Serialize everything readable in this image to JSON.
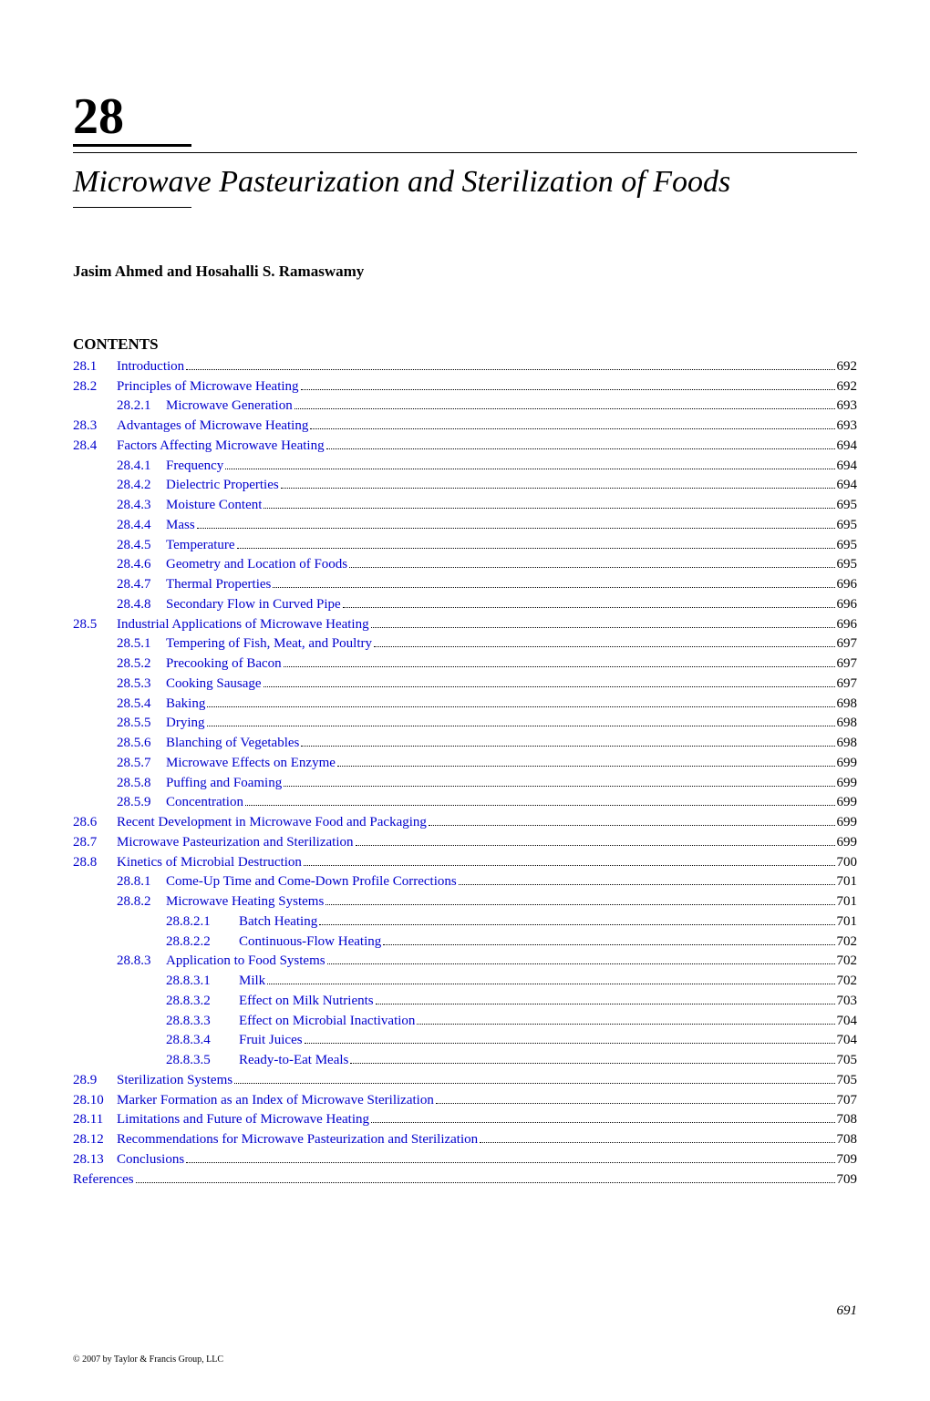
{
  "chapter_number": "28",
  "chapter_title": "Microwave Pasteurization and Sterilization of Foods",
  "authors": "Jasim Ahmed and Hosahalli S. Ramaswamy",
  "contents_label": "CONTENTS",
  "page_number": "691",
  "copyright": "© 2007 by Taylor & Francis Group, LLC",
  "colors": {
    "link": "#0000cc",
    "text": "#000000",
    "background": "#ffffff"
  },
  "typography": {
    "chapter_number_size": 56,
    "title_size": 34,
    "authors_size": 17,
    "heading_size": 17,
    "toc_size": 15
  },
  "toc": [
    {
      "level": 1,
      "num": "28.1",
      "text": "Introduction",
      "page": "692"
    },
    {
      "level": 1,
      "num": "28.2",
      "text": "Principles of Microwave Heating",
      "page": "692"
    },
    {
      "level": 2,
      "num": "28.2.1",
      "text": "Microwave Generation",
      "page": "693"
    },
    {
      "level": 1,
      "num": "28.3",
      "text": "Advantages of Microwave Heating",
      "page": "693"
    },
    {
      "level": 1,
      "num": "28.4",
      "text": "Factors Affecting Microwave Heating",
      "page": "694"
    },
    {
      "level": 2,
      "num": "28.4.1",
      "text": "Frequency",
      "page": "694"
    },
    {
      "level": 2,
      "num": "28.4.2",
      "text": "Dielectric Properties",
      "page": "694"
    },
    {
      "level": 2,
      "num": "28.4.3",
      "text": "Moisture Content",
      "page": "695"
    },
    {
      "level": 2,
      "num": "28.4.4",
      "text": "Mass",
      "page": "695"
    },
    {
      "level": 2,
      "num": "28.4.5",
      "text": "Temperature",
      "page": "695"
    },
    {
      "level": 2,
      "num": "28.4.6",
      "text": "Geometry and Location of Foods",
      "page": "695"
    },
    {
      "level": 2,
      "num": "28.4.7",
      "text": "Thermal Properties",
      "page": "696"
    },
    {
      "level": 2,
      "num": "28.4.8",
      "text": "Secondary Flow in Curved Pipe",
      "page": "696"
    },
    {
      "level": 1,
      "num": "28.5",
      "text": "Industrial Applications of Microwave Heating",
      "page": "696"
    },
    {
      "level": 2,
      "num": "28.5.1",
      "text": "Tempering of Fish, Meat, and Poultry",
      "page": "697"
    },
    {
      "level": 2,
      "num": "28.5.2",
      "text": "Precooking of Bacon",
      "page": "697"
    },
    {
      "level": 2,
      "num": "28.5.3",
      "text": "Cooking Sausage",
      "page": "697"
    },
    {
      "level": 2,
      "num": "28.5.4",
      "text": "Baking",
      "page": "698"
    },
    {
      "level": 2,
      "num": "28.5.5",
      "text": "Drying",
      "page": "698"
    },
    {
      "level": 2,
      "num": "28.5.6",
      "text": "Blanching of Vegetables",
      "page": "698"
    },
    {
      "level": 2,
      "num": "28.5.7",
      "text": "Microwave Effects on Enzyme",
      "page": "699"
    },
    {
      "level": 2,
      "num": "28.5.8",
      "text": "Puffing and Foaming",
      "page": "699"
    },
    {
      "level": 2,
      "num": "28.5.9",
      "text": "Concentration",
      "page": "699"
    },
    {
      "level": 1,
      "num": "28.6",
      "text": "Recent Development in Microwave Food and Packaging",
      "page": "699"
    },
    {
      "level": 1,
      "num": "28.7",
      "text": "Microwave Pasteurization and Sterilization",
      "page": "699"
    },
    {
      "level": 1,
      "num": "28.8",
      "text": "Kinetics of Microbial Destruction",
      "page": "700"
    },
    {
      "level": 2,
      "num": "28.8.1",
      "text": "Come-Up Time and Come-Down Profile Corrections",
      "page": "701"
    },
    {
      "level": 2,
      "num": "28.8.2",
      "text": "Microwave Heating Systems",
      "page": "701"
    },
    {
      "level": 3,
      "num": "28.8.2.1",
      "text": "Batch Heating",
      "page": "701"
    },
    {
      "level": 3,
      "num": "28.8.2.2",
      "text": "Continuous-Flow Heating",
      "page": "702"
    },
    {
      "level": 2,
      "num": "28.8.3",
      "text": "Application to Food Systems",
      "page": "702"
    },
    {
      "level": 3,
      "num": "28.8.3.1",
      "text": "Milk",
      "page": "702"
    },
    {
      "level": 3,
      "num": "28.8.3.2",
      "text": "Effect on Milk Nutrients",
      "page": "703"
    },
    {
      "level": 3,
      "num": "28.8.3.3",
      "text": "Effect on Microbial Inactivation",
      "page": "704"
    },
    {
      "level": 3,
      "num": "28.8.3.4",
      "text": "Fruit Juices",
      "page": "704"
    },
    {
      "level": 3,
      "num": "28.8.3.5",
      "text": "Ready-to-Eat Meals",
      "page": "705"
    },
    {
      "level": 1,
      "num": "28.9",
      "text": "Sterilization Systems",
      "page": "705"
    },
    {
      "level": 1,
      "num": "28.10",
      "text": "Marker Formation as an Index of Microwave Sterilization",
      "page": "707"
    },
    {
      "level": 1,
      "num": "28.11",
      "text": "Limitations and Future of Microwave Heating",
      "page": "708"
    },
    {
      "level": 1,
      "num": "28.12",
      "text": "Recommendations for Microwave Pasteurization and Sterilization",
      "page": "708"
    },
    {
      "level": 1,
      "num": "28.13",
      "text": "Conclusions",
      "page": "709"
    },
    {
      "level": 0,
      "num": "",
      "text": "References",
      "page": "709"
    }
  ]
}
